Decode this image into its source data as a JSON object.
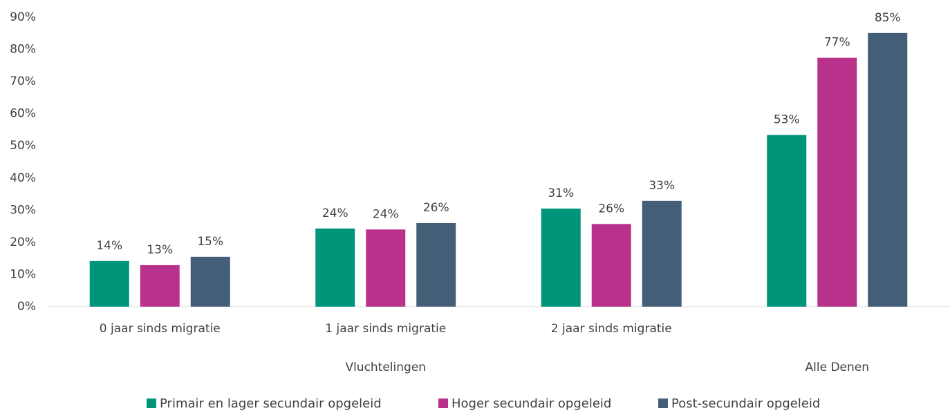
{
  "chart_data": {
    "type": "bar",
    "groups": [
      {
        "name": "Vluchtelingen",
        "categories": [
          "0 jaar sinds migratie",
          "1 jaar sinds migratie",
          "2 jaar sinds migratie"
        ]
      },
      {
        "name": "Alle Denen",
        "categories": [
          null
        ]
      }
    ],
    "series": [
      {
        "name": "Primair en lager secundair opgeleid",
        "color": "#009479",
        "values": [
          14.2,
          24.3,
          30.5,
          53.4
        ],
        "value_labels": [
          "14%",
          "24%",
          "31%",
          "53%"
        ]
      },
      {
        "name": "Hoger secundair opgeleid",
        "color": "#b8318a",
        "values": [
          12.9,
          24.0,
          25.7,
          77.4
        ],
        "value_labels": [
          "13%",
          "24%",
          "26%",
          "77%"
        ]
      },
      {
        "name": "Post-secundair opgeleid",
        "color": "#445e78",
        "values": [
          15.5,
          26.0,
          32.9,
          85.1
        ],
        "value_labels": [
          "15%",
          "26%",
          "33%",
          "85%"
        ]
      }
    ],
    "ylim": [
      0,
      90
    ],
    "yticks": [
      {
        "value": 0,
        "label": "0%"
      },
      {
        "value": 10,
        "label": "10%"
      },
      {
        "value": 20,
        "label": "20%"
      },
      {
        "value": 30,
        "label": "30%"
      },
      {
        "value": 40,
        "label": "40%"
      },
      {
        "value": 50,
        "label": "50%"
      },
      {
        "value": 60,
        "label": "60%"
      },
      {
        "value": 70,
        "label": "70%"
      },
      {
        "value": 80,
        "label": "80%"
      },
      {
        "value": 90,
        "label": "90%"
      }
    ],
    "legend": "bottom"
  }
}
